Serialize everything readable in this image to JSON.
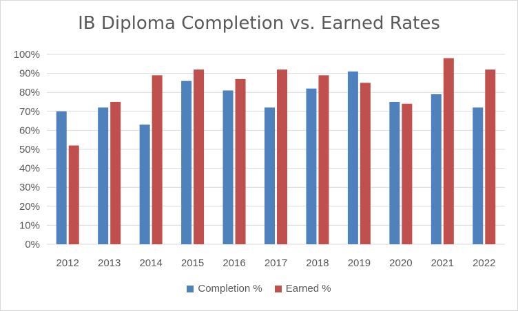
{
  "chart_data": {
    "type": "bar",
    "title": "IB Diploma Completion vs. Earned Rates",
    "categories": [
      "2012",
      "2013",
      "2014",
      "2015",
      "2016",
      "2017",
      "2018",
      "2019",
      "2020",
      "2021",
      "2022"
    ],
    "series": [
      {
        "name": "Completion %",
        "color": "#4f81bd",
        "values": [
          70,
          72,
          63,
          86,
          81,
          72,
          82,
          91,
          75,
          79,
          72
        ]
      },
      {
        "name": "Earned %",
        "color": "#c0504d",
        "values": [
          52,
          75,
          89,
          92,
          87,
          92,
          89,
          85,
          74,
          98,
          92
        ]
      }
    ],
    "ylim": [
      0,
      100
    ],
    "yticks": [
      "0%",
      "10%",
      "20%",
      "30%",
      "40%",
      "50%",
      "60%",
      "70%",
      "80%",
      "90%",
      "100%"
    ],
    "grid": true,
    "legend_position": "bottom"
  }
}
